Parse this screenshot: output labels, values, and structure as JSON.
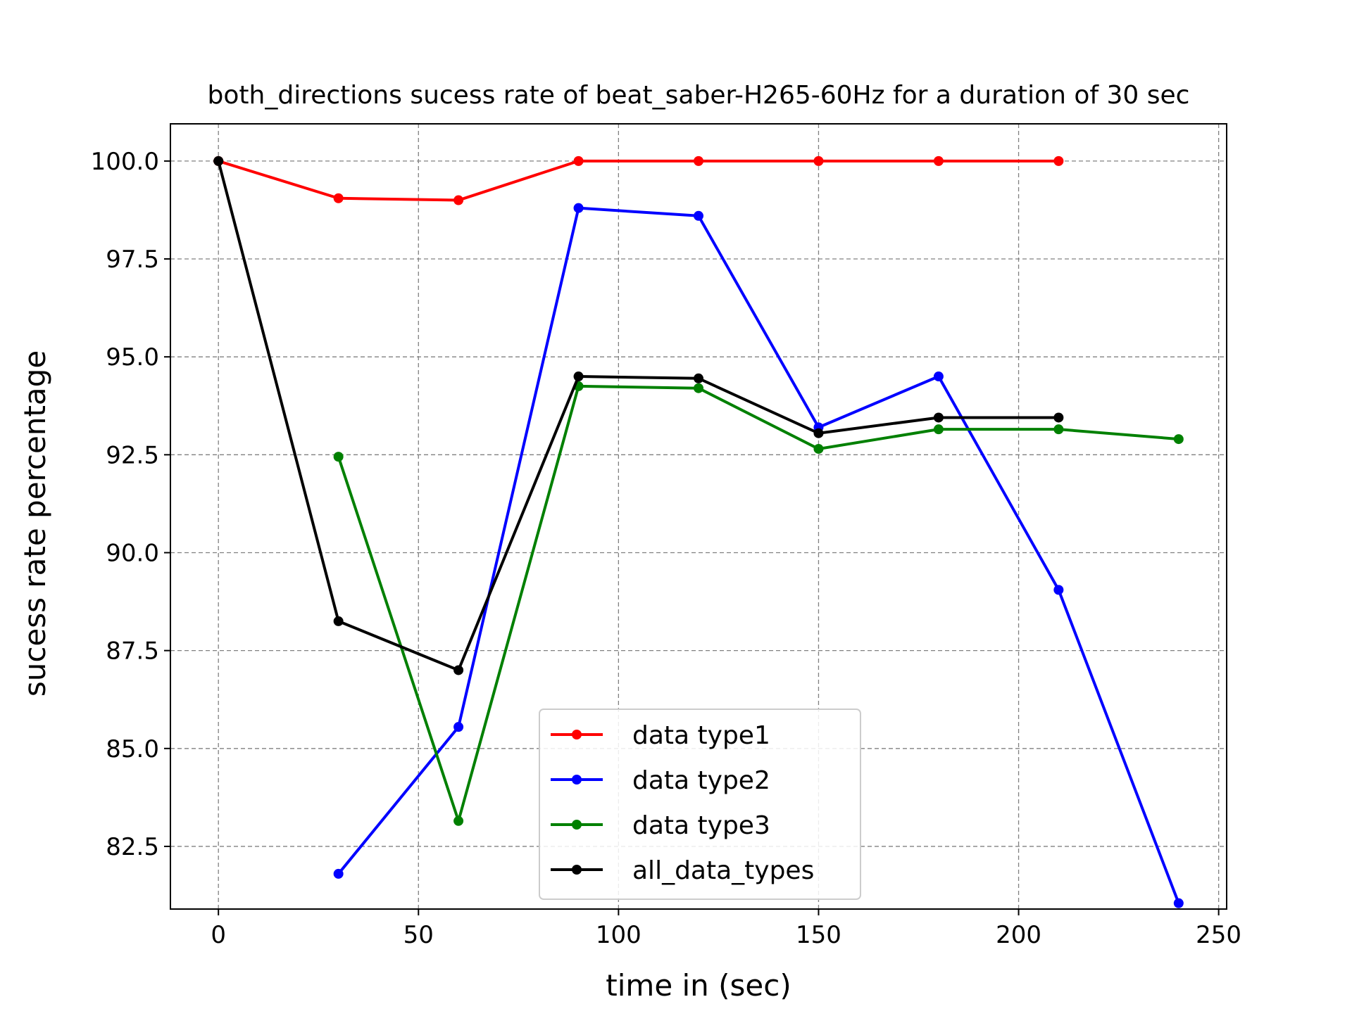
{
  "chart_data": {
    "type": "line",
    "title": "both_directions sucess rate of beat_saber-H265-60Hz for a duration of 30 sec",
    "xlabel": "time in (sec)",
    "ylabel": "sucess rate percentage",
    "xlim": [
      -12,
      252
    ],
    "ylim": [
      80.9,
      100.95
    ],
    "grid": true,
    "legend_position": "lower center",
    "x_ticks": [
      0,
      50,
      100,
      150,
      200,
      250
    ],
    "x_tick_labels": [
      "0",
      "50",
      "100",
      "150",
      "200",
      "250"
    ],
    "y_ticks": [
      82.5,
      85.0,
      87.5,
      90.0,
      92.5,
      95.0,
      97.5,
      100.0
    ],
    "y_tick_labels": [
      "82.5",
      "85.0",
      "87.5",
      "90.0",
      "92.5",
      "95.0",
      "97.5",
      "100.0"
    ],
    "series": [
      {
        "name": "data type1",
        "color": "#ff0000",
        "x": [
          0,
          30,
          60,
          90,
          120,
          150,
          180,
          210
        ],
        "y": [
          100.0,
          99.05,
          99.0,
          100.0,
          100.0,
          100.0,
          100.0,
          100.0
        ]
      },
      {
        "name": "data type2",
        "color": "#0000ff",
        "x": [
          30,
          60,
          90,
          120,
          150,
          180,
          210,
          240
        ],
        "y": [
          81.8,
          85.55,
          98.8,
          98.6,
          93.2,
          94.5,
          89.05,
          81.05
        ]
      },
      {
        "name": "data type3",
        "color": "#008000",
        "x": [
          30,
          60,
          90,
          120,
          150,
          180,
          210,
          240
        ],
        "y": [
          92.45,
          83.15,
          94.25,
          94.2,
          92.65,
          93.15,
          93.15,
          92.9
        ]
      },
      {
        "name": "all_data_types",
        "color": "#000000",
        "x": [
          0,
          30,
          60,
          90,
          120,
          150,
          180,
          210
        ],
        "y": [
          100.0,
          88.25,
          87.0,
          94.5,
          94.45,
          93.05,
          93.45,
          93.45
        ]
      }
    ]
  }
}
